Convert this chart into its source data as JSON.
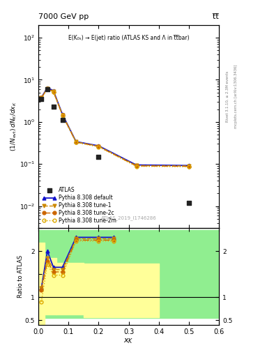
{
  "title_left": "7000 GeV pp",
  "title_right": "t̅t̅",
  "annotation": "E(K₀ₛ) → E(jet) ratio (ATLAS KS and Λ in t̅t̅bar)",
  "atlas_label": "ATLAS_2019_I1746286",
  "right_label_top": "Rivet 3.1.10, ≥ 2.3M events",
  "right_label_bottom": "mcplots.cern.ch [arXiv:1306.3436]",
  "atlas_x": [
    0.01,
    0.03,
    0.05,
    0.08,
    0.2,
    0.5
  ],
  "atlas_y": [
    3.5,
    6.0,
    2.3,
    1.1,
    0.15,
    0.012
  ],
  "main_x": [
    0.01,
    0.03,
    0.05,
    0.08,
    0.125,
    0.2,
    0.325,
    0.5
  ],
  "pythia_default_vals": [
    3.8,
    6.5,
    5.5,
    1.5,
    0.34,
    0.27,
    0.095,
    0.092
  ],
  "pythia_tune1_vals": [
    3.75,
    6.3,
    5.3,
    1.48,
    0.335,
    0.265,
    0.092,
    0.09
  ],
  "pythia_tune2c_vals": [
    3.7,
    6.2,
    5.2,
    1.45,
    0.33,
    0.26,
    0.09,
    0.088
  ],
  "pythia_tune2m_vals": [
    3.6,
    6.1,
    5.1,
    1.42,
    0.325,
    0.255,
    0.088,
    0.086
  ],
  "ratio_x": [
    0.01,
    0.03,
    0.05,
    0.08,
    0.125,
    0.2,
    0.25
  ],
  "ratio_default": [
    1.2,
    2.0,
    1.65,
    1.65,
    2.3,
    2.3,
    2.3
  ],
  "ratio_tune1": [
    1.2,
    1.85,
    1.6,
    1.6,
    2.27,
    2.27,
    2.27
  ],
  "ratio_tune2c": [
    1.15,
    1.78,
    1.55,
    1.55,
    2.24,
    2.24,
    2.24
  ],
  "ratio_tune2m": [
    0.9,
    1.72,
    1.48,
    1.48,
    2.22,
    2.22,
    2.22
  ],
  "ylim_main": [
    0.003,
    200
  ],
  "ylim_ratio": [
    0.4,
    2.5
  ],
  "xlim": [
    0.0,
    0.6
  ],
  "color_default": "#1111cc",
  "color_tune1": "#cc8800",
  "color_tune2c": "#cc6600",
  "color_tune2m": "#ddaa00",
  "color_atlas": "#222222",
  "color_green": "#90ee90",
  "color_yellow": "#ffff99"
}
